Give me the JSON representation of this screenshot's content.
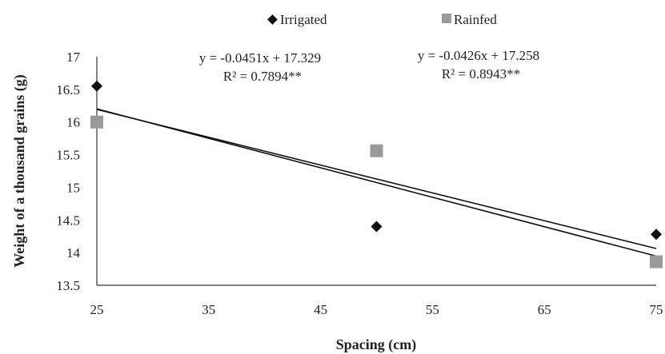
{
  "chart_data": {
    "type": "scatter",
    "xlabel": "Spacing (cm)",
    "ylabel": "Weight of a thousand grains (g)",
    "xlim": [
      25,
      75
    ],
    "ylim": [
      13.5,
      17
    ],
    "xticks": [
      "25",
      "35",
      "45",
      "55",
      "65",
      "75"
    ],
    "yticks": [
      "13.5",
      "14",
      "14.5",
      "15",
      "15.5",
      "16",
      "16.5",
      "17"
    ],
    "grid": false,
    "legend_position": "top",
    "series": [
      {
        "name": "Irrigated",
        "marker": "diamond",
        "color": "#111111",
        "x": [
          25,
          50,
          75
        ],
        "y": [
          16.55,
          14.4,
          14.28
        ],
        "trend": {
          "slope": -0.0451,
          "intercept": 17.329
        },
        "equation": "y = -0.0451x + 17.329",
        "r2": "R² = 0.7894**"
      },
      {
        "name": "Rainfed",
        "marker": "square",
        "color": "#9a9a9a",
        "x": [
          25,
          50,
          75
        ],
        "y": [
          16.0,
          15.56,
          13.86
        ],
        "trend": {
          "slope": -0.0426,
          "intercept": 17.258
        },
        "equation": "y = -0.0426x + 17.258",
        "r2": "R² = 0.8943**"
      }
    ]
  }
}
